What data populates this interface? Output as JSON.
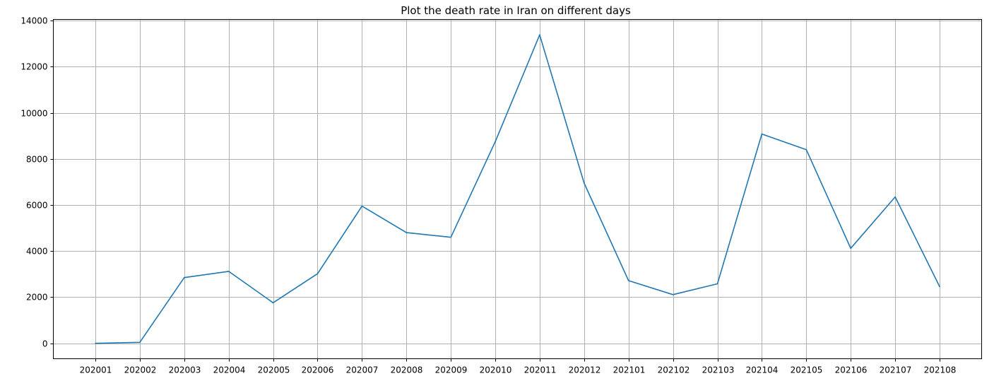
{
  "chart_data": {
    "type": "line",
    "title": "Plot the death rate in Iran on different days",
    "xlabel": "",
    "ylabel": "",
    "categories": [
      "202001",
      "202002",
      "202003",
      "202004",
      "202005",
      "202006",
      "202007",
      "202008",
      "202009",
      "202010",
      "202011",
      "202012",
      "202101",
      "202102",
      "202103",
      "202104",
      "202105",
      "202106",
      "202107",
      "202108"
    ],
    "series": [
      {
        "values": [
          0,
          40,
          2850,
          3120,
          1760,
          3020,
          5950,
          4800,
          4600,
          8750,
          13380,
          6950,
          2720,
          2110,
          2580,
          9080,
          8400,
          4120,
          6350,
          2460
        ],
        "color": "#1f77b4"
      }
    ],
    "ylim": [
      -670,
      14050
    ],
    "yticks": [
      0,
      2000,
      4000,
      6000,
      8000,
      10000,
      12000,
      14000
    ],
    "grid": true,
    "legend": "none"
  }
}
